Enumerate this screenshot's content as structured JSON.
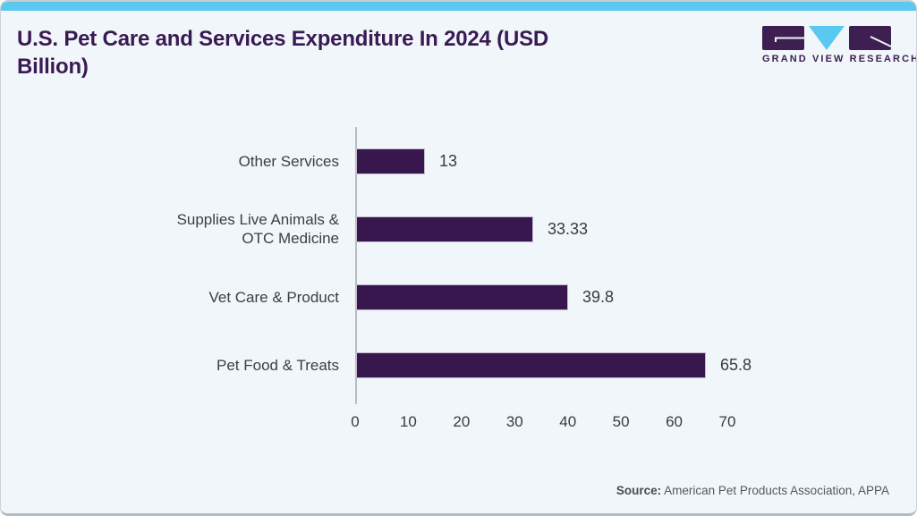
{
  "header": {
    "title": "U.S. Pet Care and Services Expenditure In 2024 (USD Billion)",
    "logo_text": "GRAND VIEW RESEARCH"
  },
  "chart_data": {
    "type": "bar",
    "orientation": "horizontal",
    "title": "U.S. Pet Care and Services Expenditure In 2024 (USD Billion)",
    "categories": [
      "Other Services",
      "Supplies Live Animals & OTC Medicine",
      "Vet Care & Product",
      "Pet Food & Treats"
    ],
    "values": [
      13,
      33.33,
      39.8,
      65.8
    ],
    "value_labels": [
      "13",
      "33.33",
      "39.8",
      "65.8"
    ],
    "xlabel": "",
    "ylabel": "",
    "xlim": [
      0,
      70
    ],
    "xticks": [
      0,
      10,
      20,
      30,
      40,
      50,
      60,
      70
    ],
    "grid": false,
    "legend": false,
    "bar_color": "#38164e"
  },
  "footer": {
    "source_label": "Source:",
    "source_text": " American Pet Products Association, APPA"
  },
  "colors": {
    "accent_cyan": "#5ac8ef",
    "brand_purple": "#3d2051",
    "title_purple": "#3a1a53",
    "bar_purple": "#38164e",
    "background": "#f1f6fa",
    "axis_gray": "#b9bec4",
    "text_dark": "#3a3a40"
  }
}
